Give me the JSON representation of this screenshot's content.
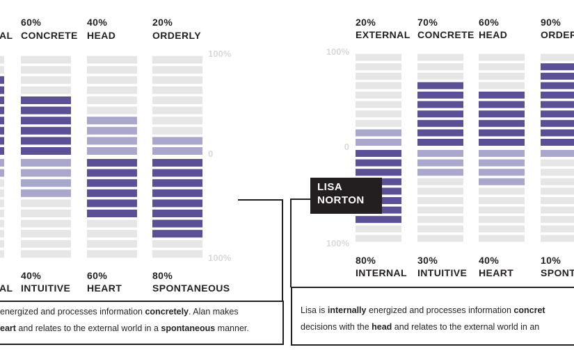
{
  "chart_data": [
    {
      "type": "bar",
      "person": "",
      "axis": {
        "top": "100%",
        "mid": "0",
        "bottom": "100%"
      },
      "columns": [
        {
          "top_pct": "",
          "top_label": "AL",
          "bottom_pct": "",
          "bottom_label": "AL",
          "top_value": 80,
          "bottom_value": 20
        },
        {
          "top_pct": "60%",
          "top_label": "CONCRETE",
          "bottom_pct": "40%",
          "bottom_label": "INTUITIVE",
          "top_value": 60,
          "bottom_value": 40
        },
        {
          "top_pct": "40%",
          "top_label": "HEAD",
          "bottom_pct": "60%",
          "bottom_label": "HEART",
          "top_value": 40,
          "bottom_value": 60
        },
        {
          "top_pct": "20%",
          "top_label": "ORDERLY",
          "bottom_pct": "80%",
          "bottom_label": "SPONTANEOUS",
          "top_value": 20,
          "bottom_value": 80
        }
      ],
      "caption": [
        [
          {
            "t": "energized and processes information ",
            "b": false
          },
          {
            "t": "concretely",
            "b": true
          },
          {
            "t": ". Alan makes",
            "b": false
          }
        ],
        [
          {
            "t": "eart",
            "b": true
          },
          {
            "t": " and relates to the external world in a ",
            "b": false
          },
          {
            "t": "spontaneous",
            "b": true
          },
          {
            "t": " manner.",
            "b": false
          }
        ]
      ]
    },
    {
      "type": "bar",
      "person": "LISA NORTON",
      "person_lines": [
        "LISA",
        "NORTON"
      ],
      "axis": {
        "top": "100%",
        "mid": "0",
        "bottom": "100%"
      },
      "columns": [
        {
          "top_pct": "20%",
          "top_label": "EXTERNAL",
          "bottom_pct": "80%",
          "bottom_label": "INTERNAL",
          "top_value": 20,
          "bottom_value": 80
        },
        {
          "top_pct": "70%",
          "top_label": "CONCRETE",
          "bottom_pct": "30%",
          "bottom_label": "INTUITIVE",
          "top_value": 70,
          "bottom_value": 30
        },
        {
          "top_pct": "60%",
          "top_label": "HEAD",
          "bottom_pct": "40%",
          "bottom_label": "HEART",
          "top_value": 60,
          "bottom_value": 40
        },
        {
          "top_pct": "90%",
          "top_label": "ORDER",
          "bottom_pct": "10%",
          "bottom_label": "SPONT",
          "top_value": 90,
          "bottom_value": 10
        }
      ],
      "caption": [
        [
          {
            "t": "Lisa is ",
            "b": false
          },
          {
            "t": "internally",
            "b": true
          },
          {
            "t": " energized and processes information ",
            "b": false
          },
          {
            "t": "concret",
            "b": true
          }
        ],
        [
          {
            "t": "decisions with the ",
            "b": false
          },
          {
            "t": "head",
            "b": true
          },
          {
            "t": " and relates to the external world in an",
            "b": false
          }
        ]
      ]
    }
  ],
  "colors": {
    "background_bar": "#e6e6e6",
    "dominant": "#5b4f96",
    "recessive": "#a9a7cc",
    "text": "#231f20",
    "axis_text": "#d9d9d9"
  }
}
